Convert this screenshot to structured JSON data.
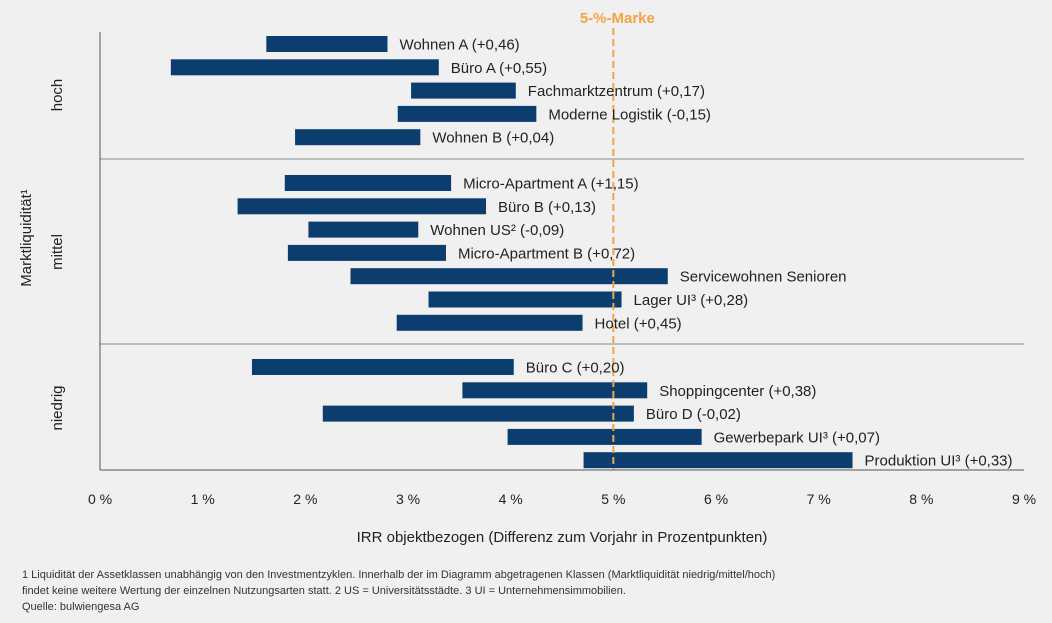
{
  "chart_data": {
    "type": "range-bar",
    "xlabel": "IRR objektbezogen (Differenz zum Vorjahr in Prozentpunkten)",
    "ylabel": "Marktliquidität¹",
    "xlim": [
      0,
      9
    ],
    "x_ticks": [
      "0 %",
      "1 %",
      "2 %",
      "3 %",
      "4 %",
      "5 %",
      "6 %",
      "7 %",
      "8 %",
      "9 %"
    ],
    "bar_color": "#0b3d6e",
    "reference_line": {
      "x": 5,
      "label": "5-%-Marke",
      "color": "#f2a444"
    },
    "groups": [
      {
        "label": "hoch",
        "bars": [
          {
            "label": "Wohnen A (+0,46)",
            "start": 1.62,
            "end": 2.8
          },
          {
            "label": "Büro A (+0,55)",
            "start": 0.69,
            "end": 3.3
          },
          {
            "label": "Fachmarktzentrum (+0,17)",
            "start": 3.03,
            "end": 4.05
          },
          {
            "label": "Moderne Logistik (-0,15)",
            "start": 2.9,
            "end": 4.25
          },
          {
            "label": "Wohnen B (+0,04)",
            "start": 1.9,
            "end": 3.12
          }
        ]
      },
      {
        "label": "mittel",
        "bars": [
          {
            "label": "Micro-Apartment A (+1,15)",
            "start": 1.8,
            "end": 3.42
          },
          {
            "label": "Büro B (+0,13)",
            "start": 1.34,
            "end": 3.76
          },
          {
            "label": "Wohnen US² (-0,09)",
            "start": 2.03,
            "end": 3.1
          },
          {
            "label": "Micro-Apartment B (+0,72)",
            "start": 1.83,
            "end": 3.37
          },
          {
            "label": "Servicewohnen Senioren",
            "start": 2.44,
            "end": 5.53
          },
          {
            "label": "Lager UI³ (+0,28)",
            "start": 3.2,
            "end": 5.08
          },
          {
            "label": "Hotel (+0,45)",
            "start": 2.89,
            "end": 4.7
          }
        ]
      },
      {
        "label": "niedrig",
        "bars": [
          {
            "label": "Büro C (+0,20)",
            "start": 1.48,
            "end": 4.03
          },
          {
            "label": "Shoppingcenter (+0,38)",
            "start": 3.53,
            "end": 5.33
          },
          {
            "label": "Büro D (-0,02)",
            "start": 2.17,
            "end": 5.2
          },
          {
            "label": "Gewerbepark UI³ (+0,07)",
            "start": 3.97,
            "end": 5.86
          },
          {
            "label": "Produktion UI³ (+0,33)",
            "start": 4.71,
            "end": 7.33
          }
        ]
      }
    ]
  },
  "footnotes": {
    "line1": "1 Liquidität der Assetklassen unabhängig von den Investmentzyklen. Innerhalb der im Diagramm abgetragenen Klassen (Marktliquidität niedrig/mittel/hoch)",
    "line2": "findet keine weitere Wertung der einzelnen Nutzungsarten statt. 2 US = Universitätsstädte. 3 UI = Unternehmensimmobilien.",
    "line3": "Quelle: bulwiengesa AG"
  }
}
